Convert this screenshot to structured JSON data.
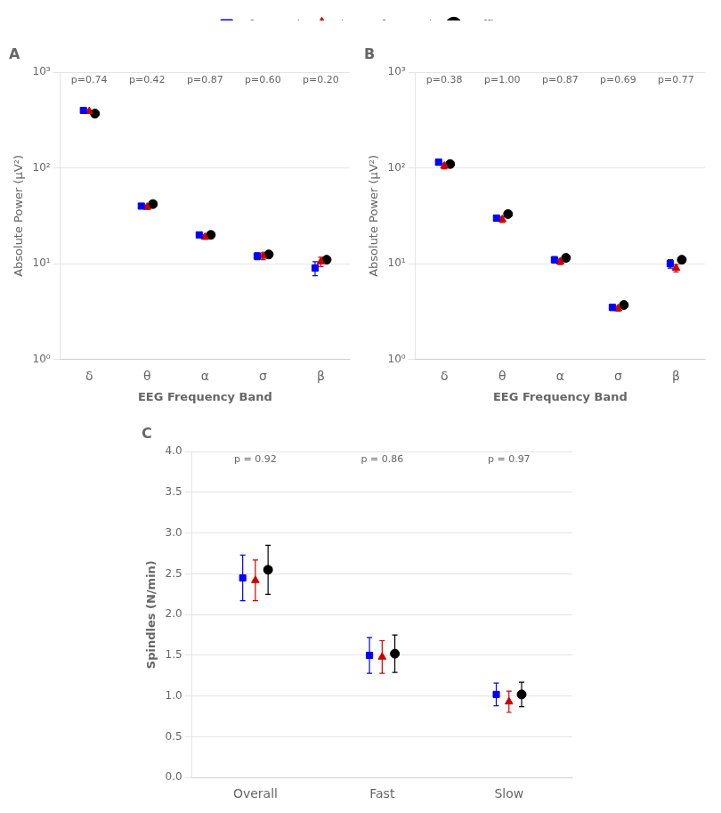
{
  "chart_data": [
    {
      "type": "scatter",
      "title": "A",
      "xlabel": "EEG Frequency Band",
      "ylabel": "Absolute Power (μV²)",
      "categories": [
        "δ",
        "θ",
        "α",
        "σ",
        "β"
      ],
      "series": [
        {
          "name": "Infrasound",
          "color": "#0000FF",
          "marker": "square",
          "values": [
            400,
            40,
            20,
            12,
            9.0
          ],
          "errors": [
            15,
            2,
            1,
            1,
            1.5
          ]
        },
        {
          "name": "Sham Infrasound",
          "color": "#CC0000",
          "marker": "triangle",
          "values": [
            390,
            39,
            19,
            12,
            10.5
          ],
          "errors": [
            14,
            2,
            1,
            1,
            1.2
          ]
        },
        {
          "name": "Traffic",
          "color": "#000000",
          "marker": "circle",
          "values": [
            370,
            42,
            20,
            12.5,
            11.0
          ],
          "errors": [
            20,
            2,
            1,
            1,
            0.8
          ]
        }
      ],
      "annotations": [
        {
          "x": "δ",
          "text": "p=0.74"
        },
        {
          "x": "θ",
          "text": "p=0.42"
        },
        {
          "x": "α",
          "text": "p=0.87"
        },
        {
          "x": "σ",
          "text": "p=0.60"
        },
        {
          "x": "β",
          "text": "p=0.20"
        }
      ],
      "log": "y",
      "ylim": [
        1,
        1000
      ],
      "yticks": [
        {
          "value": 1,
          "label": "10⁰"
        },
        {
          "value": 10,
          "label": "10¹"
        },
        {
          "value": 100,
          "label": "10²"
        },
        {
          "value": 1000,
          "label": "10³"
        }
      ],
      "grid": true,
      "legend": "top"
    },
    {
      "type": "scatter",
      "title": "B",
      "xlabel": "EEG Frequency Band",
      "ylabel": "Absolute Power (μV²)",
      "categories": [
        "δ",
        "θ",
        "α",
        "σ",
        "β"
      ],
      "series": [
        {
          "name": "Infrasound",
          "color": "#0000FF",
          "marker": "square",
          "values": [
            115,
            30,
            11,
            3.5,
            10.0
          ],
          "errors": [
            8,
            2,
            0.8,
            0.25,
            1.0
          ]
        },
        {
          "name": "Sham Infrasound",
          "color": "#CC0000",
          "marker": "triangle",
          "values": [
            105,
            29,
            10.5,
            3.4,
            9.0
          ],
          "errors": [
            7,
            2,
            0.7,
            0.2,
            0.8
          ]
        },
        {
          "name": "Traffic",
          "color": "#000000",
          "marker": "circle",
          "values": [
            110,
            33,
            11.5,
            3.7,
            11.0
          ],
          "errors": [
            7,
            2,
            0.8,
            0.25,
            0.9
          ]
        }
      ],
      "annotations": [
        {
          "x": "δ",
          "text": "p=0.38"
        },
        {
          "x": "θ",
          "text": "p=1.00"
        },
        {
          "x": "α",
          "text": "p=0.87"
        },
        {
          "x": "σ",
          "text": "p=0.69"
        },
        {
          "x": "β",
          "text": "p=0.77"
        }
      ],
      "log": "y",
      "ylim": [
        1,
        1000
      ],
      "yticks": [
        {
          "value": 1,
          "label": "10⁰"
        },
        {
          "value": 10,
          "label": "10¹"
        },
        {
          "value": 100,
          "label": "10²"
        },
        {
          "value": 1000,
          "label": "10³"
        }
      ],
      "grid": true
    },
    {
      "type": "scatter",
      "title": "C",
      "ylabel": "Spindles (N/min)",
      "categories": [
        "Overall",
        "Fast",
        "Slow"
      ],
      "series": [
        {
          "name": "Infrasound",
          "color": "#0000FF",
          "marker": "square",
          "values": [
            2.45,
            1.5,
            1.02
          ],
          "errors": [
            0.28,
            0.22,
            0.14
          ]
        },
        {
          "name": "Sham Infrasound",
          "color": "#CC0000",
          "marker": "triangle",
          "values": [
            2.42,
            1.48,
            0.93
          ],
          "errors": [
            0.25,
            0.2,
            0.13
          ]
        },
        {
          "name": "Traffic",
          "color": "#000000",
          "marker": "circle",
          "values": [
            2.55,
            1.52,
            1.02
          ],
          "errors": [
            0.3,
            0.23,
            0.15
          ]
        }
      ],
      "annotations": [
        {
          "x": "Overall",
          "text": "p = 0.92"
        },
        {
          "x": "Fast",
          "text": "p = 0.86"
        },
        {
          "x": "Slow",
          "text": "p = 0.97"
        }
      ],
      "ylim": [
        0,
        4
      ],
      "yticks": [
        {
          "value": 0,
          "label": "0.0"
        },
        0.5,
        {
          "value": 1.0,
          "label": "1.0"
        },
        1.5,
        {
          "value": 2.0,
          "label": "2.0"
        },
        2.5,
        {
          "value": 3.0,
          "label": "3.0"
        },
        3.5,
        {
          "value": 4.0,
          "label": "4.0"
        }
      ],
      "grid": true
    }
  ]
}
